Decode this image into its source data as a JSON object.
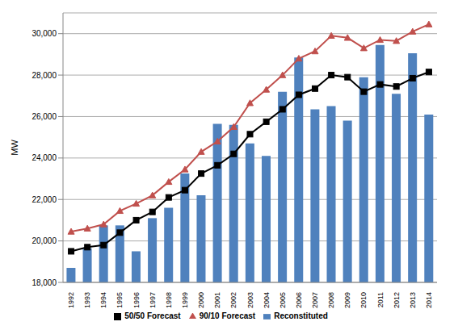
{
  "chart_data": {
    "type": "bar",
    "y_label": "MW",
    "categories": [
      "1992",
      "1993",
      "1994",
      "1995",
      "1996",
      "1997",
      "1998",
      "1999",
      "2000",
      "2001",
      "2002",
      "2003",
      "2004",
      "2005",
      "2006",
      "2007",
      "2008",
      "2009",
      "2010",
      "2011",
      "2012",
      "2013",
      "2014"
    ],
    "series": [
      {
        "name": "Reconstituted",
        "type": "bar",
        "color": "#4f81bd",
        "values": [
          18700,
          19650,
          20750,
          20750,
          19500,
          21100,
          21600,
          23250,
          22200,
          25650,
          25600,
          24700,
          24100,
          27200,
          28850,
          26350,
          26500,
          25800,
          27900,
          29450,
          27100,
          29050,
          26100
        ]
      },
      {
        "name": "90/10 Forecast",
        "type": "line",
        "color": "#c0504d",
        "marker": "triangle",
        "values": [
          20450,
          20600,
          20800,
          21450,
          21800,
          22200,
          22850,
          23450,
          24300,
          24800,
          25500,
          26650,
          27300,
          28000,
          28800,
          29150,
          29900,
          29800,
          29300,
          29700,
          29650,
          30100,
          30450
        ]
      },
      {
        "name": "50/50 Forecast",
        "type": "line",
        "color": "#000000",
        "marker": "square",
        "values": [
          19500,
          19700,
          19800,
          20400,
          21000,
          21400,
          22100,
          22450,
          23250,
          23650,
          24200,
          25150,
          25750,
          26350,
          27050,
          27350,
          28000,
          27900,
          27200,
          27550,
          27450,
          27850,
          28150
        ]
      }
    ],
    "ylim": [
      18000,
      31000
    ],
    "yticks": [
      {
        "value": 18000,
        "label": "18,000"
      },
      {
        "value": 20000,
        "label": "20,000"
      },
      {
        "value": 22000,
        "label": "22,000"
      },
      {
        "value": 24000,
        "label": "24,000"
      },
      {
        "value": 26000,
        "label": "26,000"
      },
      {
        "value": 28000,
        "label": "28,000"
      },
      {
        "value": 30000,
        "label": "30,000"
      }
    ],
    "grid": true,
    "legend": "bottom"
  }
}
